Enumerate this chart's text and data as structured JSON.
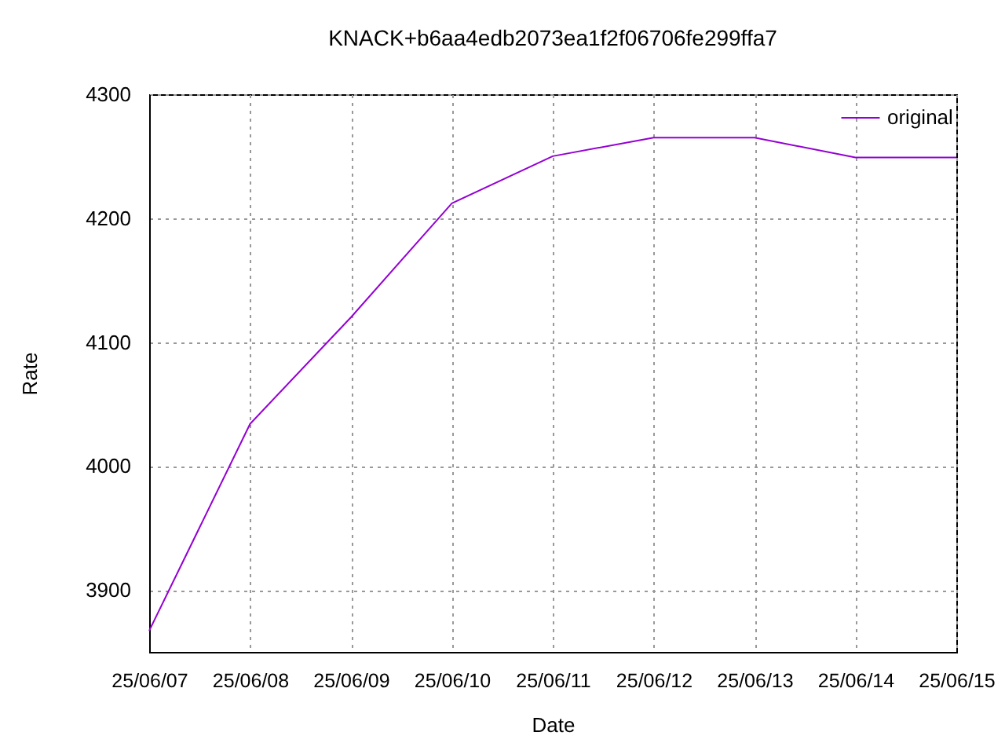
{
  "chart_data": {
    "type": "line",
    "title": "KNACK+b6aa4edb2073ea1f2f06706fe299ffa7",
    "xlabel": "Date",
    "ylabel": "Rate",
    "x": [
      "--06-07",
      "--06-08",
      "--06-09",
      "--06-10",
      "--06-11",
      "--06-12",
      "--06-13",
      "--06-14",
      "--06-15"
    ],
    "series": [
      {
        "name": "original",
        "color": "#9400d3",
        "values": [
          3867,
          4034,
          4120,
          4212,
          4250,
          4265,
          4265,
          4249,
          4249
        ]
      }
    ],
    "xlim": [
      "--06-07",
      "--06-15"
    ],
    "xticks": [
      {
        "value": "--06-07",
        "label": "25/06/07"
      },
      {
        "value": "--06-08",
        "label": "25/06/08"
      },
      {
        "value": "--06-09",
        "label": "25/06/09"
      },
      {
        "value": "--06-10",
        "label": "25/06/10"
      },
      {
        "value": "--06-11",
        "label": "25/06/11"
      },
      {
        "value": "--06-12",
        "label": "25/06/12"
      },
      {
        "value": "--06-13",
        "label": "25/06/13"
      },
      {
        "value": "--06-14",
        "label": "25/06/14"
      },
      {
        "value": "--06-15",
        "label": "25/06/15"
      }
    ],
    "ylim": [
      3850,
      4300
    ],
    "yticks": [
      3900,
      4000,
      4100,
      4200,
      4300
    ],
    "grid": true,
    "legend": "top right"
  }
}
